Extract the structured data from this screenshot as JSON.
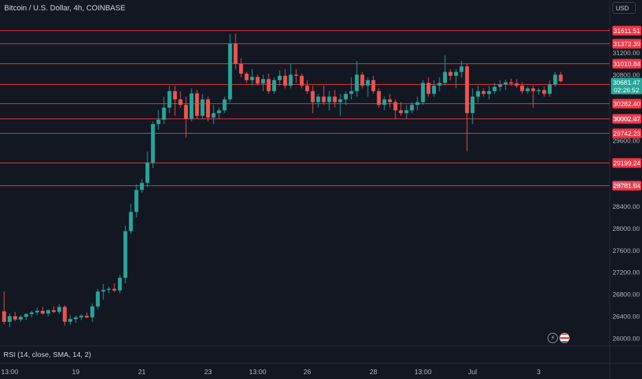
{
  "header": {
    "title": "Bitcoin / U.S. Dollar, 4h, COINBASE",
    "currency_button": "USD"
  },
  "indicator": {
    "rsi_label": "RSI (14, close, SMA, 14, 2)"
  },
  "icons": {
    "lightning": "lightning-icon",
    "flag": "us-flag-icon"
  },
  "colors": {
    "background": "#131722",
    "up": "#26a69a",
    "down": "#ef5350",
    "level_line": "#f23645",
    "grid": "#1e222d",
    "text": "#b2b5be"
  },
  "chart_data": {
    "type": "candlestick",
    "symbol": "Bitcoin / U.S. Dollar",
    "interval": "4h",
    "exchange": "COINBASE",
    "y_ticks": [
      26000,
      26400,
      26800,
      27200,
      27600,
      28000,
      28400,
      28800,
      29600,
      30000,
      30800,
      31200
    ],
    "y_tick_labels": [
      "26000.00",
      "26400.00",
      "26800.00",
      "27200.00",
      "27600.00",
      "28000.00",
      "28400.00",
      "28800.00",
      "29600.00",
      "30000.00",
      "30800.00",
      "31200.00"
    ],
    "ylim": [
      25860,
      32160
    ],
    "x_tick_labels": [
      {
        "label": "13:00",
        "bar": 1
      },
      {
        "label": "19",
        "bar": 13
      },
      {
        "label": "21",
        "bar": 25
      },
      {
        "label": "23",
        "bar": 37
      },
      {
        "label": "13:00",
        "bar": 46
      },
      {
        "label": "26",
        "bar": 55
      },
      {
        "label": "28",
        "bar": 67
      },
      {
        "label": "13:00",
        "bar": 76
      },
      {
        "label": "Jul",
        "bar": 85
      },
      {
        "label": "3",
        "bar": 97
      }
    ],
    "levels": [
      31611.51,
      31372.39,
      31010.84,
      30623.1,
      30282.4,
      30002.47,
      29742.23,
      29199.24,
      28781.64
    ],
    "level_labels": [
      "31611.51",
      "31372.39",
      "31010.84",
      "30623.10",
      "30282.40",
      "30002.47",
      "29742.23",
      "29199.24",
      "28781.64"
    ],
    "current_price": "30681.47",
    "countdown": "02:26:52",
    "candles": [
      [
        26490,
        26850,
        26250,
        26300
      ],
      [
        26300,
        26450,
        26200,
        26400
      ],
      [
        26400,
        26480,
        26310,
        26340
      ],
      [
        26340,
        26420,
        26300,
        26390
      ],
      [
        26390,
        26460,
        26330,
        26440
      ],
      [
        26440,
        26500,
        26380,
        26470
      ],
      [
        26470,
        26560,
        26420,
        26500
      ],
      [
        26500,
        26570,
        26430,
        26450
      ],
      [
        26450,
        26530,
        26400,
        26510
      ],
      [
        26510,
        26580,
        26460,
        26480
      ],
      [
        26480,
        26620,
        26440,
        26570
      ],
      [
        26570,
        26600,
        26230,
        26300
      ],
      [
        26300,
        26420,
        26240,
        26350
      ],
      [
        26350,
        26410,
        26280,
        26380
      ],
      [
        26380,
        26440,
        26330,
        26410
      ],
      [
        26410,
        26470,
        26360,
        26380
      ],
      [
        26380,
        26630,
        26300,
        26580
      ],
      [
        26580,
        26900,
        26530,
        26850
      ],
      [
        26850,
        26990,
        26700,
        26880
      ],
      [
        26880,
        26940,
        26820,
        26900
      ],
      [
        26900,
        27000,
        26840,
        26870
      ],
      [
        26870,
        27150,
        26820,
        27100
      ],
      [
        27100,
        28050,
        27000,
        27950
      ],
      [
        27950,
        28450,
        27900,
        28300
      ],
      [
        28300,
        28800,
        28200,
        28700
      ],
      [
        28700,
        28900,
        28650,
        28830
      ],
      [
        28830,
        29400,
        28750,
        29200
      ],
      [
        29200,
        29950,
        29100,
        29900
      ],
      [
        29900,
        30150,
        29800,
        29980
      ],
      [
        29980,
        30400,
        29900,
        30200
      ],
      [
        30200,
        30600,
        30100,
        30500
      ],
      [
        30500,
        30600,
        30050,
        30350
      ],
      [
        30350,
        30500,
        30200,
        30250
      ],
      [
        30250,
        30400,
        29650,
        30000
      ],
      [
        30000,
        30550,
        29950,
        30460
      ],
      [
        30460,
        30520,
        30000,
        30050
      ],
      [
        30050,
        30450,
        30000,
        30350
      ],
      [
        30350,
        30400,
        29950,
        30020
      ],
      [
        30020,
        30250,
        29900,
        30100
      ],
      [
        30100,
        30200,
        30000,
        30150
      ],
      [
        30150,
        30400,
        30100,
        30350
      ],
      [
        30350,
        31540,
        30300,
        31370
      ],
      [
        31370,
        31550,
        30900,
        31000
      ],
      [
        31000,
        31100,
        30750,
        30820
      ],
      [
        30820,
        30850,
        30650,
        30700
      ],
      [
        30700,
        30900,
        30600,
        30760
      ],
      [
        30760,
        30800,
        30600,
        30640
      ],
      [
        30640,
        30800,
        30500,
        30720
      ],
      [
        30720,
        30820,
        30450,
        30500
      ],
      [
        30500,
        30750,
        30450,
        30700
      ],
      [
        30700,
        30880,
        30600,
        30780
      ],
      [
        30780,
        30900,
        30550,
        30600
      ],
      [
        30600,
        31000,
        30550,
        30800
      ],
      [
        30800,
        30900,
        30650,
        30780
      ],
      [
        30780,
        30820,
        30550,
        30600
      ],
      [
        30600,
        30700,
        30450,
        30500
      ],
      [
        30500,
        30600,
        30100,
        30300
      ],
      [
        30300,
        30450,
        30200,
        30400
      ],
      [
        30400,
        30600,
        30250,
        30300
      ],
      [
        30300,
        30500,
        30150,
        30400
      ],
      [
        30400,
        30520,
        30200,
        30300
      ],
      [
        30300,
        30450,
        30050,
        30350
      ],
      [
        30350,
        30500,
        30250,
        30450
      ],
      [
        30450,
        30750,
        30350,
        30500
      ],
      [
        30500,
        31050,
        30400,
        30800
      ],
      [
        30800,
        30850,
        30550,
        30600
      ],
      [
        30600,
        30750,
        30400,
        30700
      ],
      [
        30700,
        30780,
        30450,
        30500
      ],
      [
        30500,
        30550,
        30200,
        30250
      ],
      [
        30250,
        30400,
        30150,
        30350
      ],
      [
        30350,
        30450,
        30200,
        30300
      ],
      [
        30300,
        30350,
        30000,
        30150
      ],
      [
        30150,
        30300,
        30050,
        30100
      ],
      [
        30100,
        30250,
        30000,
        30150
      ],
      [
        30150,
        30300,
        30100,
        30250
      ],
      [
        30250,
        30400,
        30150,
        30300
      ],
      [
        30300,
        30700,
        30250,
        30650
      ],
      [
        30650,
        30750,
        30400,
        30450
      ],
      [
        30450,
        30700,
        30400,
        30600
      ],
      [
        30600,
        30750,
        30500,
        30650
      ],
      [
        30650,
        31150,
        30600,
        30850
      ],
      [
        30850,
        30900,
        30700,
        30780
      ],
      [
        30780,
        30900,
        30550,
        30850
      ],
      [
        30850,
        31050,
        30750,
        30950
      ],
      [
        30950,
        31000,
        29400,
        30100
      ],
      [
        30100,
        30550,
        29900,
        30400
      ],
      [
        30400,
        30600,
        30300,
        30500
      ],
      [
        30500,
        30550,
        30400,
        30450
      ],
      [
        30450,
        30600,
        30350,
        30500
      ],
      [
        30500,
        30650,
        30450,
        30580
      ],
      [
        30580,
        30700,
        30500,
        30620
      ],
      [
        30620,
        30710,
        30520,
        30660
      ],
      [
        30660,
        30730,
        30600,
        30640
      ],
      [
        30640,
        30720,
        30560,
        30600
      ],
      [
        30600,
        30660,
        30450,
        30500
      ],
      [
        30500,
        30580,
        30450,
        30550
      ],
      [
        30550,
        30600,
        30200,
        30500
      ],
      [
        30500,
        30560,
        30440,
        30520
      ],
      [
        30520,
        30580,
        30400,
        30450
      ],
      [
        30450,
        30700,
        30400,
        30620
      ],
      [
        30620,
        30850,
        30580,
        30800
      ],
      [
        30800,
        30850,
        30660,
        30681
      ]
    ]
  }
}
